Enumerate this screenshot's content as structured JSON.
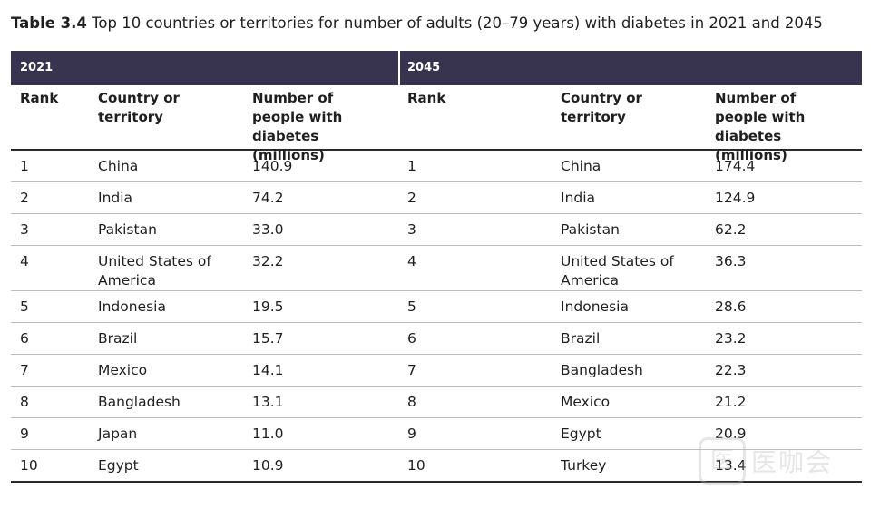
{
  "caption": {
    "label": "Table 3.4",
    "text": "Top 10 countries or territories for number of adults (20–79 years) with diabetes in 2021 and 2045"
  },
  "years": {
    "left": "2021",
    "right": "2045"
  },
  "headers": {
    "rank": "Rank",
    "country": "Country or territory",
    "number": "Number of people with diabetes (millions)"
  },
  "table": {
    "rows": [
      {
        "rank": "1",
        "country_2021": "China",
        "value_2021": "140.9",
        "country_2045": "China",
        "value_2045": "174.4"
      },
      {
        "rank": "2",
        "country_2021": "India",
        "value_2021": "74.2",
        "country_2045": "India",
        "value_2045": "124.9"
      },
      {
        "rank": "3",
        "country_2021": "Pakistan",
        "value_2021": "33.0",
        "country_2045": "Pakistan",
        "value_2045": "62.2"
      },
      {
        "rank": "4",
        "country_2021": "United States of America",
        "value_2021": "32.2",
        "country_2045": "United States of America",
        "value_2045": "36.3"
      },
      {
        "rank": "5",
        "country_2021": "Indonesia",
        "value_2021": "19.5",
        "country_2045": "Indonesia",
        "value_2045": "28.6"
      },
      {
        "rank": "6",
        "country_2021": "Brazil",
        "value_2021": "15.7",
        "country_2045": "Brazil",
        "value_2045": "23.2"
      },
      {
        "rank": "7",
        "country_2021": "Mexico",
        "value_2021": "14.1",
        "country_2045": "Bangladesh",
        "value_2045": "22.3"
      },
      {
        "rank": "8",
        "country_2021": "Bangladesh",
        "value_2021": "13.1",
        "country_2045": "Mexico",
        "value_2045": "21.2"
      },
      {
        "rank": "9",
        "country_2021": "Japan",
        "value_2021": "11.0",
        "country_2045": "Egypt",
        "value_2045": "20.9"
      },
      {
        "rank": "10",
        "country_2021": "Egypt",
        "value_2021": "10.9",
        "country_2045": "Turkey",
        "value_2045": "13.4"
      }
    ]
  },
  "watermark": {
    "text": "医咖会"
  }
}
